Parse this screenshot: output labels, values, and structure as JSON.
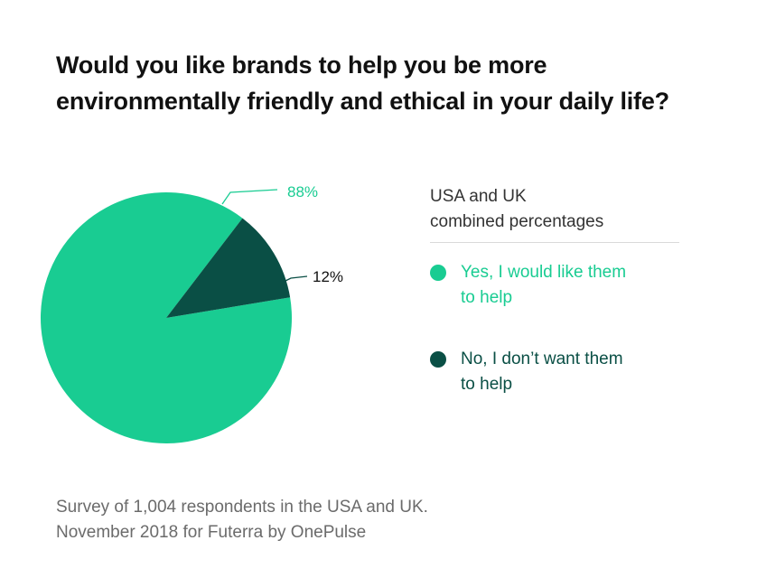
{
  "title_lines": [
    "Would you like brands to help you be more",
    "environmentally friendly and ethical in your daily life?"
  ],
  "legend": {
    "header_lines": [
      "USA and UK",
      "combined percentages"
    ],
    "items": [
      {
        "label_lines": [
          "Yes, I would like them",
          "to help"
        ],
        "color": "#19cc92"
      },
      {
        "label_lines": [
          "No, I don’t want them",
          "to help"
        ],
        "color": "#0a4f45"
      }
    ]
  },
  "footer_lines": [
    "Survey of 1,004 respondents in the USA and UK.",
    "November 2018 for Futerra by OnePulse"
  ],
  "chart_data": {
    "type": "pie",
    "categories": [
      "Yes, I would like them to help",
      "No, I don’t want them to help"
    ],
    "values": [
      88,
      12
    ],
    "labels": [
      "88%",
      "12%"
    ],
    "colors": [
      "#19cc92",
      "#0a4f45"
    ],
    "label_colors": [
      "#19cc92",
      "#111111"
    ]
  }
}
